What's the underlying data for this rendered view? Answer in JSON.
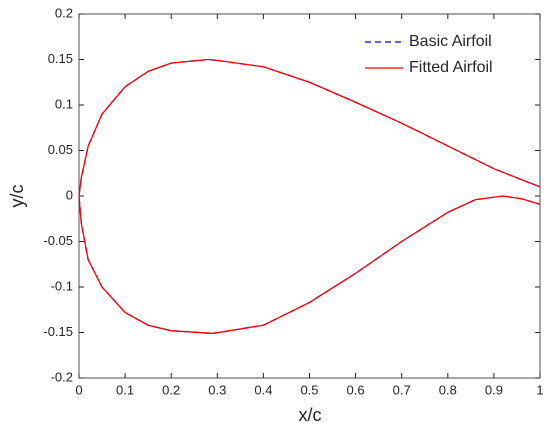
{
  "chart_data": {
    "type": "line",
    "xlabel": "x/c",
    "ylabel": "y/c",
    "xlim": [
      0,
      1
    ],
    "xticks": [
      0,
      0.1,
      0.2,
      0.3,
      0.4,
      0.5,
      0.6,
      0.7,
      0.8,
      0.9,
      1
    ],
    "ylim": [
      -0.2,
      0.2
    ],
    "yticks": [
      0.2,
      0.15,
      0.1,
      0.05,
      0,
      -0.05,
      -0.1,
      -0.15,
      -0.2
    ],
    "legend": "top-right",
    "series": [
      {
        "name": "Basic Airfoil",
        "color": "#0000ff",
        "dashed": true,
        "x": [
          1,
          0.9,
          0.8,
          0.7,
          0.6,
          0.5,
          0.4,
          0.3,
          0.28,
          0.2,
          0.15,
          0.1,
          0.05,
          0.02,
          0.005,
          0,
          0.005,
          0.02,
          0.05,
          0.1,
          0.15,
          0.2,
          0.29,
          0.4,
          0.5,
          0.6,
          0.7,
          0.8,
          0.86,
          0.92,
          0.96,
          1
        ],
        "values": [
          0.01,
          0.03,
          0.055,
          0.08,
          0.103,
          0.125,
          0.142,
          0.149,
          0.15,
          0.146,
          0.137,
          0.12,
          0.09,
          0.055,
          0.02,
          0,
          -0.03,
          -0.07,
          -0.1,
          -0.128,
          -0.142,
          -0.148,
          -0.151,
          -0.142,
          -0.117,
          -0.085,
          -0.05,
          -0.018,
          -0.004,
          0,
          -0.003,
          -0.009
        ]
      },
      {
        "name": "Fitted Airfoil",
        "color": "#ff0000",
        "dashed": false,
        "x": [
          1,
          0.9,
          0.8,
          0.7,
          0.6,
          0.5,
          0.4,
          0.3,
          0.28,
          0.2,
          0.15,
          0.1,
          0.05,
          0.02,
          0.005,
          0,
          0.005,
          0.02,
          0.05,
          0.1,
          0.15,
          0.2,
          0.29,
          0.4,
          0.5,
          0.6,
          0.7,
          0.8,
          0.86,
          0.92,
          0.96,
          1
        ],
        "values": [
          0.01,
          0.03,
          0.055,
          0.08,
          0.103,
          0.125,
          0.142,
          0.149,
          0.15,
          0.146,
          0.137,
          0.12,
          0.09,
          0.055,
          0.02,
          0,
          -0.03,
          -0.07,
          -0.1,
          -0.128,
          -0.142,
          -0.148,
          -0.151,
          -0.142,
          -0.117,
          -0.085,
          -0.05,
          -0.018,
          -0.004,
          0,
          -0.003,
          -0.009
        ]
      }
    ]
  }
}
